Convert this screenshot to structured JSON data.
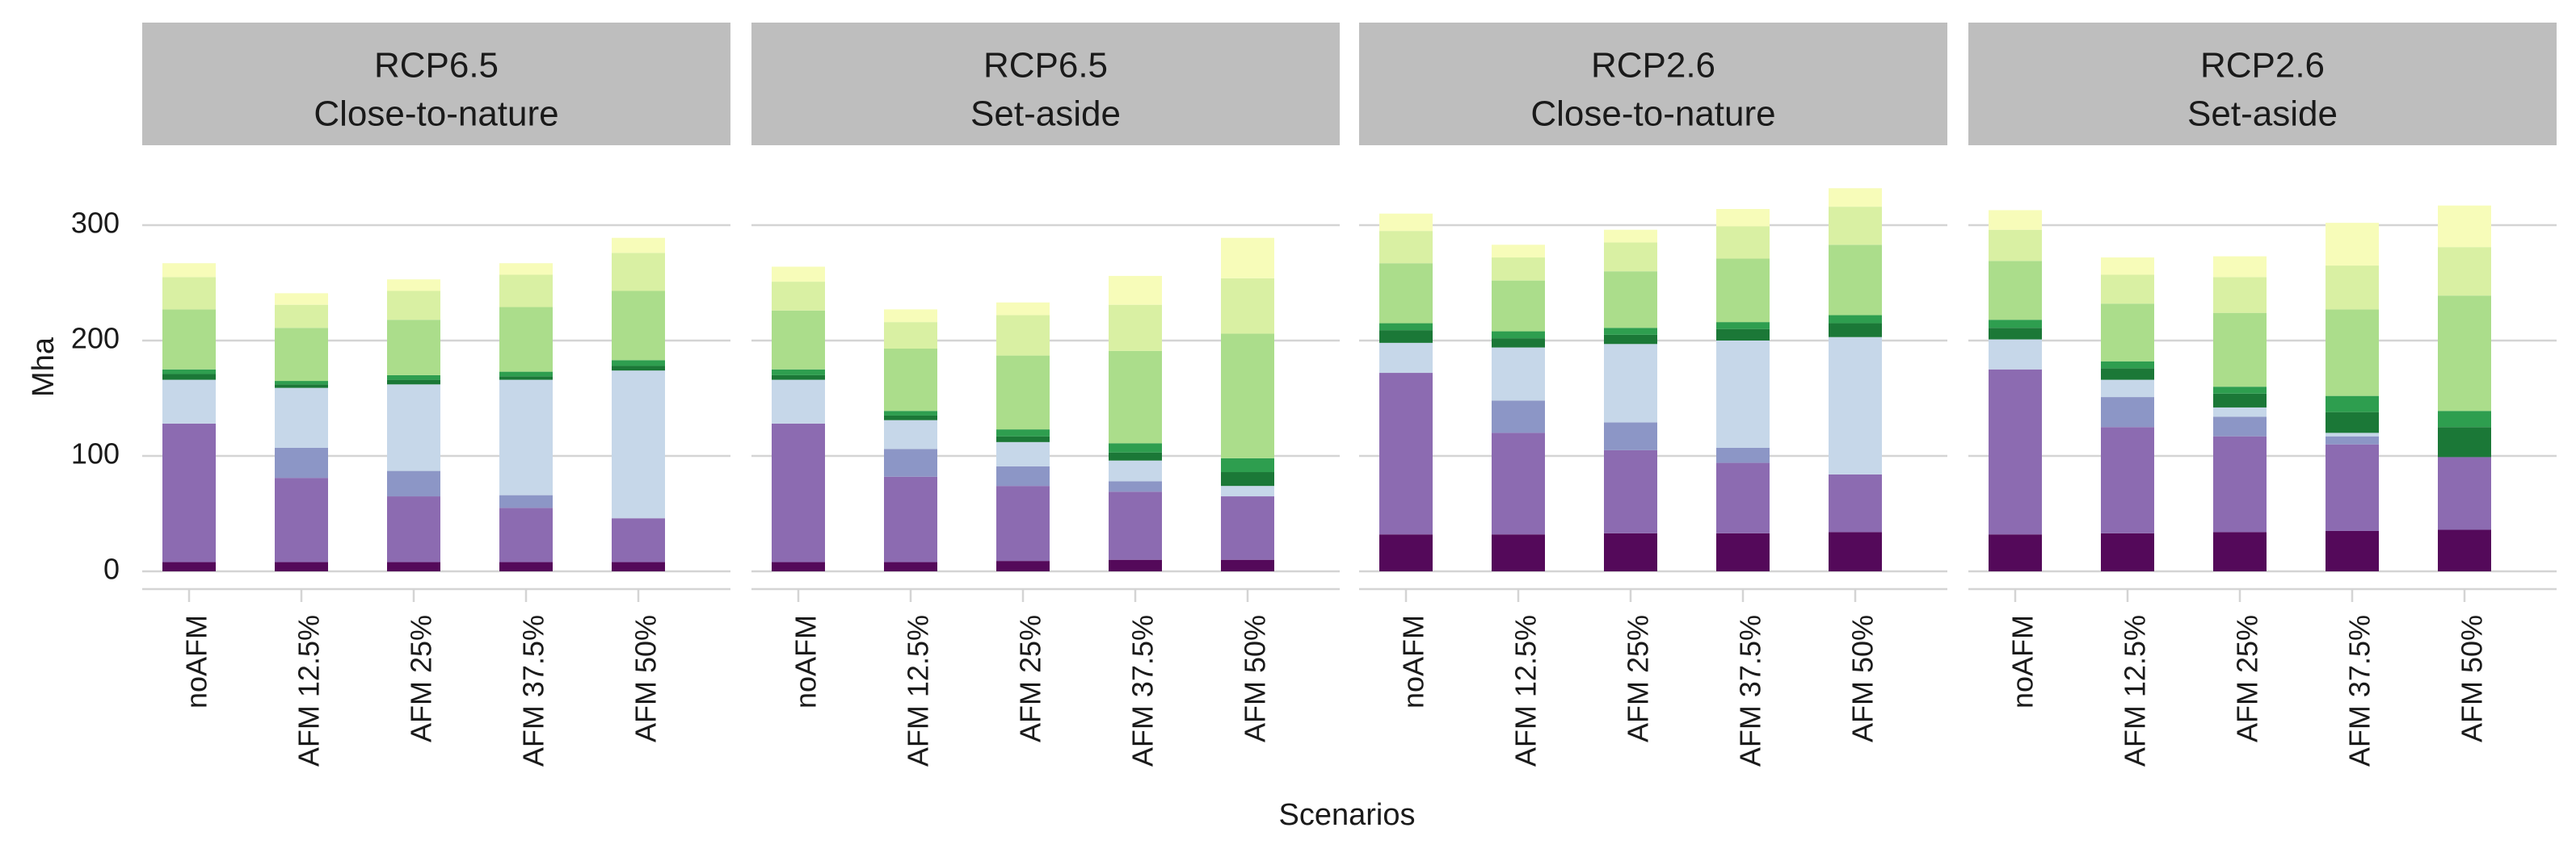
{
  "chart_data": {
    "type": "bar",
    "stacked": true,
    "xlabel": "Scenarios",
    "ylabel": "Mha",
    "ylim": [
      0,
      335
    ],
    "yticks": [
      0,
      100,
      200,
      300
    ],
    "grid": true,
    "legend": "none",
    "categories": [
      "noAFM",
      "AFM 12.5%",
      "AFM 25%",
      "AFM 37.5%",
      "AFM 50%"
    ],
    "segment_colors": [
      "#54095a",
      "#8c6bb1",
      "#8c96c6",
      "#c6d7e9",
      "#1b7837",
      "#2e9e4f",
      "#abdd8b",
      "#d9f0a3",
      "#f7fcb9"
    ],
    "panels": [
      {
        "title_line1": "RCP6.5",
        "title_line2": "Close-to-nature",
        "stacks": [
          [
            8,
            120,
            0,
            38,
            5,
            4,
            52,
            28,
            12
          ],
          [
            8,
            73,
            26,
            52,
            3,
            3,
            46,
            20,
            10
          ],
          [
            8,
            57,
            22,
            75,
            4,
            4,
            48,
            25,
            10
          ],
          [
            8,
            47,
            11,
            100,
            3,
            4,
            56,
            28,
            10
          ],
          [
            8,
            38,
            0,
            128,
            4,
            5,
            60,
            33,
            13
          ]
        ]
      },
      {
        "title_line1": "RCP6.5",
        "title_line2": "Set-aside",
        "stacks": [
          [
            8,
            120,
            0,
            38,
            4,
            5,
            51,
            25,
            13
          ],
          [
            8,
            74,
            24,
            25,
            4,
            4,
            54,
            23,
            11
          ],
          [
            9,
            65,
            17,
            21,
            5,
            6,
            64,
            35,
            11
          ],
          [
            10,
            59,
            9,
            18,
            7,
            8,
            80,
            40,
            25
          ],
          [
            10,
            55,
            0,
            9,
            12,
            12,
            108,
            48,
            35
          ]
        ]
      },
      {
        "title_line1": "RCP2.6",
        "title_line2": "Close-to-nature",
        "stacks": [
          [
            32,
            140,
            0,
            26,
            11,
            6,
            52,
            28,
            15
          ],
          [
            32,
            88,
            28,
            46,
            8,
            6,
            44,
            20,
            11
          ],
          [
            33,
            72,
            24,
            68,
            8,
            6,
            49,
            25,
            11
          ],
          [
            33,
            61,
            13,
            93,
            10,
            6,
            55,
            28,
            15
          ],
          [
            34,
            50,
            0,
            119,
            12,
            7,
            61,
            33,
            16
          ]
        ]
      },
      {
        "title_line1": "RCP2.6",
        "title_line2": "Set-aside",
        "stacks": [
          [
            32,
            143,
            0,
            26,
            10,
            7,
            51,
            27,
            17
          ],
          [
            33,
            92,
            26,
            15,
            10,
            6,
            50,
            25,
            15
          ],
          [
            34,
            83,
            17,
            8,
            12,
            6,
            64,
            31,
            18
          ],
          [
            35,
            75,
            7,
            3,
            18,
            14,
            75,
            38,
            37
          ],
          [
            36,
            63,
            0,
            0,
            26,
            14,
            100,
            42,
            36
          ]
        ]
      }
    ]
  }
}
